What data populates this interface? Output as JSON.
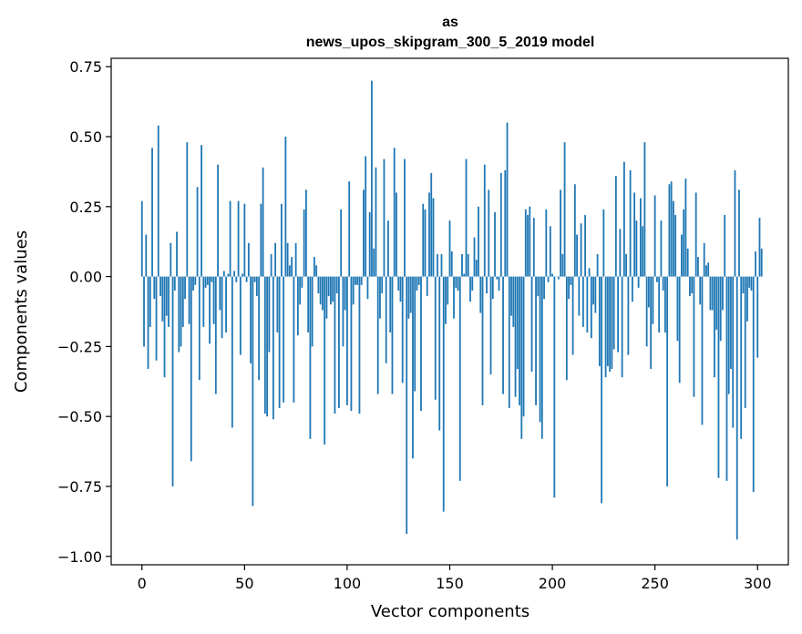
{
  "chart_data": {
    "type": "bar",
    "title": "as",
    "subtitle": "news_upos_skipgram_300_5_2019 model",
    "xlabel": "Vector components",
    "ylabel": "Components values",
    "xlim": [
      -15,
      315
    ],
    "ylim": [
      -1.03,
      0.78
    ],
    "xticks": [
      0,
      50,
      100,
      150,
      200,
      250,
      300
    ],
    "xtick_labels": [
      "0",
      "50",
      "100",
      "150",
      "200",
      "250",
      "300"
    ],
    "yticks": [
      0.75,
      0.5,
      0.25,
      0.0,
      -0.25,
      -0.5,
      -0.75,
      -1.0
    ],
    "ytick_labels": [
      "0.75",
      "0.50",
      "0.25",
      "0.00",
      "−0.25",
      "−0.50",
      "−0.75",
      "−1.00"
    ],
    "bar_color": "#1f77b4",
    "series": [
      {
        "name": "as",
        "x_start": 0,
        "values": [
          0.27,
          -0.25,
          0.15,
          -0.33,
          -0.18,
          0.46,
          -0.08,
          -0.3,
          0.54,
          -0.07,
          -0.16,
          -0.36,
          -0.14,
          -0.18,
          0.12,
          -0.75,
          -0.05,
          0.16,
          -0.27,
          -0.25,
          -0.18,
          -0.08,
          0.48,
          -0.17,
          -0.66,
          -0.05,
          -0.03,
          0.32,
          -0.37,
          0.47,
          -0.18,
          -0.04,
          -0.03,
          -0.24,
          -0.02,
          -0.17,
          -0.42,
          0.4,
          -0.12,
          -0.22,
          0.02,
          -0.2,
          0.01,
          0.27,
          -0.54,
          0.02,
          -0.02,
          0.27,
          -0.28,
          0.01,
          0.26,
          -0.02,
          0.12,
          -0.31,
          -0.82,
          -0.02,
          -0.07,
          -0.37,
          0.26,
          0.39,
          -0.49,
          -0.5,
          -0.27,
          0.08,
          -0.51,
          0.12,
          -0.2,
          -0.47,
          0.26,
          -0.45,
          0.5,
          0.12,
          0.04,
          0.07,
          -0.45,
          0.12,
          -0.21,
          -0.1,
          -0.04,
          0.24,
          0.31,
          -0.2,
          -0.58,
          -0.25,
          0.07,
          0.04,
          -0.06,
          -0.1,
          -0.12,
          -0.6,
          -0.15,
          -0.07,
          -0.1,
          -0.09,
          -0.49,
          -0.06,
          -0.47,
          0.24,
          -0.25,
          -0.12,
          -0.46,
          0.34,
          -0.48,
          -0.1,
          -0.03,
          -0.03,
          -0.49,
          -0.03,
          0.31,
          0.43,
          -0.08,
          0.23,
          0.7,
          0.1,
          0.39,
          -0.42,
          -0.15,
          -0.06,
          0.42,
          -0.31,
          0.2,
          -0.2,
          -0.42,
          0.46,
          0.3,
          -0.05,
          -0.09,
          -0.38,
          0.42,
          -0.92,
          -0.15,
          -0.13,
          -0.65,
          -0.41,
          -0.05,
          -0.03,
          -0.48,
          0.26,
          0.24,
          -0.07,
          0.3,
          0.37,
          0.28,
          -0.44,
          0.08,
          -0.55,
          0.08,
          -0.84,
          -0.17,
          -0.1,
          0.2,
          0.09,
          -0.15,
          -0.04,
          -0.05,
          -0.73,
          0.08,
          0.01,
          0.42,
          0.08,
          -0.09,
          -0.05,
          0.14,
          0.06,
          0.25,
          -0.13,
          -0.46,
          0.4,
          -0.06,
          0.31,
          -0.35,
          -0.08,
          0.23,
          -0.01,
          -0.05,
          0.37,
          -0.42,
          0.38,
          0.55,
          -0.47,
          -0.14,
          -0.18,
          -0.43,
          -0.33,
          -0.46,
          -0.58,
          -0.5,
          0.24,
          0.22,
          0.25,
          -0.34,
          0.21,
          -0.46,
          -0.07,
          -0.52,
          -0.58,
          -0.08,
          0.24,
          -0.02,
          0.18,
          0.01,
          -0.79,
          0.0,
          -0.01,
          0.31,
          0.08,
          0.48,
          -0.37,
          -0.08,
          -0.03,
          -0.28,
          0.33,
          0.15,
          -0.14,
          0.19,
          -0.18,
          0.22,
          -0.2,
          0.03,
          -0.22,
          -0.1,
          -0.13,
          0.08,
          -0.32,
          -0.81,
          0.24,
          -0.36,
          -0.32,
          -0.34,
          -0.33,
          -0.26,
          0.36,
          -0.27,
          0.17,
          -0.36,
          0.41,
          0.08,
          -0.28,
          0.38,
          -0.09,
          0.3,
          0.2,
          -0.04,
          0.28,
          0.18,
          0.48,
          -0.25,
          -0.11,
          -0.33,
          -0.17,
          0.29,
          -0.02,
          -0.2,
          0.2,
          -0.05,
          -0.2,
          -0.75,
          0.33,
          0.34,
          0.27,
          0.22,
          -0.23,
          -0.38,
          0.15,
          0.24,
          0.35,
          0.1,
          -0.07,
          -0.06,
          -0.43,
          0.3,
          0.07,
          -0.1,
          -0.53,
          0.12,
          0.04,
          0.05,
          -0.12,
          -0.12,
          -0.36,
          -0.19,
          -0.72,
          -0.23,
          -0.12,
          0.22,
          -0.73,
          -0.42,
          -0.33,
          -0.54,
          0.38,
          -0.94,
          0.31,
          -0.58,
          -0.06,
          -0.47,
          -0.16,
          -0.04,
          -0.05,
          -0.77,
          0.09,
          -0.29,
          0.21,
          0.1
        ]
      }
    ]
  }
}
